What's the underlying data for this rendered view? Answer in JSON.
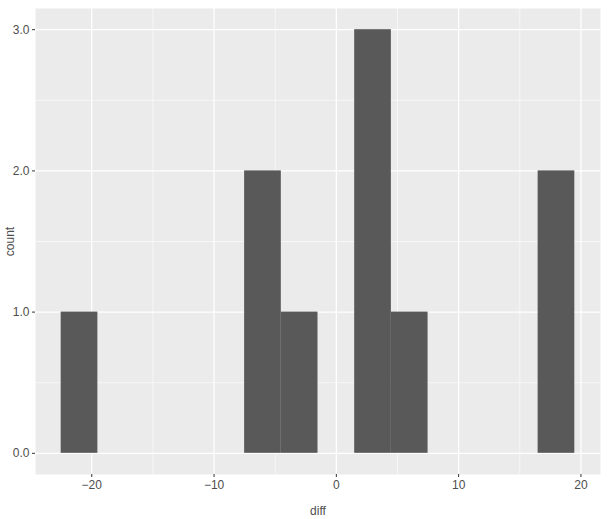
{
  "chart_data": {
    "type": "histogram",
    "x_label": "diff",
    "y_label": "count",
    "bins": [
      -22.5,
      -19.5,
      -16.5,
      -13.5,
      -10.5,
      -7.5,
      -4.5,
      -1.5,
      1.5,
      4.5,
      7.5,
      10.5,
      13.5,
      16.5,
      19.5
    ],
    "values": [
      1,
      0,
      0,
      0,
      0,
      2,
      1,
      0,
      3,
      1,
      0,
      0,
      0,
      2
    ],
    "color": "#595959",
    "xlim": [
      -24.6,
      21.6
    ],
    "xticks": [
      -20,
      -10,
      0,
      10,
      20
    ],
    "ylim": [
      -0.15,
      3.15
    ],
    "yticks": [
      0,
      1,
      2,
      3
    ],
    "grid": true
  }
}
